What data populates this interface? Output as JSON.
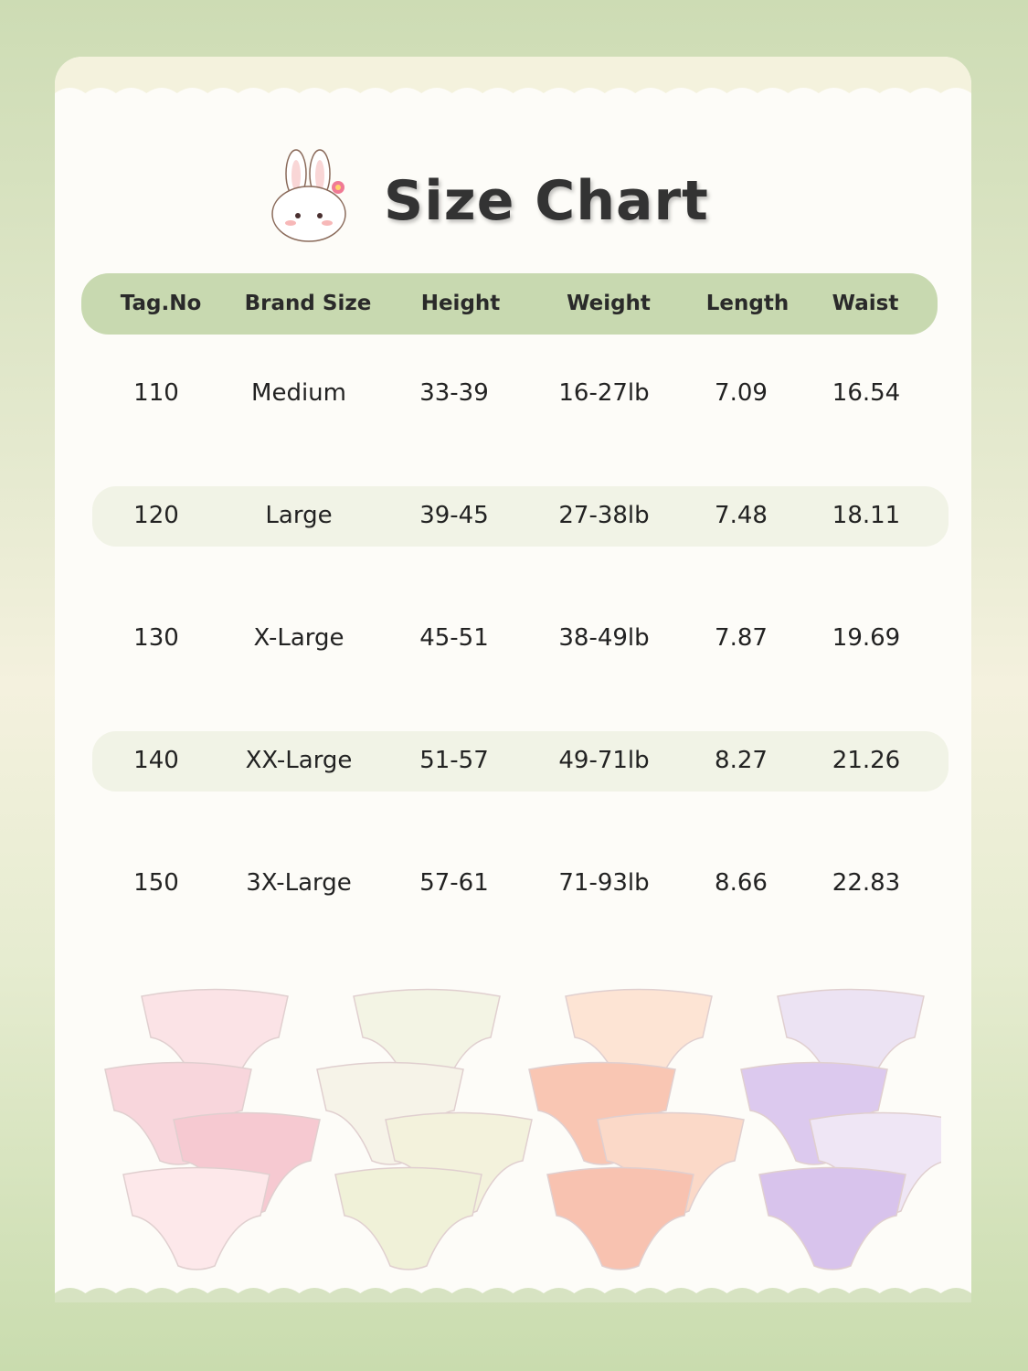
{
  "title": "Size Chart",
  "table": {
    "headers": [
      "Tag.No",
      "Brand Size",
      "Height",
      "Weight",
      "Length",
      "Waist"
    ],
    "rows": [
      [
        "110",
        "Medium",
        "33-39",
        "16-27lb",
        "7.09",
        "16.54"
      ],
      [
        "120",
        "Large",
        "39-45",
        "27-38lb",
        "7.48",
        "18.11"
      ],
      [
        "130",
        "X-Large",
        "45-51",
        "38-49lb",
        "7.87",
        "19.69"
      ],
      [
        "140",
        "XX-Large",
        "51-57",
        "49-71lb",
        "8.27",
        "21.26"
      ],
      [
        "150",
        "3X-Large",
        "57-61",
        "71-93lb",
        "8.66",
        "22.83"
      ]
    ]
  },
  "colors": {
    "header_bg": "#c8d9b0",
    "alt_row_bg": "#f1f3e6",
    "card_bg": "#fdfcf8",
    "page_bg": "#cddcb4"
  },
  "product_sets": [
    {
      "name": "pink-floral",
      "colors": [
        "#fbe3e6",
        "#f8d6dc",
        "#f6c9d1",
        "#fde8ea"
      ]
    },
    {
      "name": "cream-bunny",
      "colors": [
        "#f3f4e4",
        "#f6f3e8",
        "#f3f2dc",
        "#f0f1d8"
      ]
    },
    {
      "name": "peach-strawberry",
      "colors": [
        "#fde4d4",
        "#f9c6b3",
        "#fbd9c8",
        "#f8c2b0"
      ]
    },
    {
      "name": "lavender-bear",
      "colors": [
        "#ece3f3",
        "#dcc9ee",
        "#efe6f5",
        "#d8c3ec"
      ]
    }
  ]
}
